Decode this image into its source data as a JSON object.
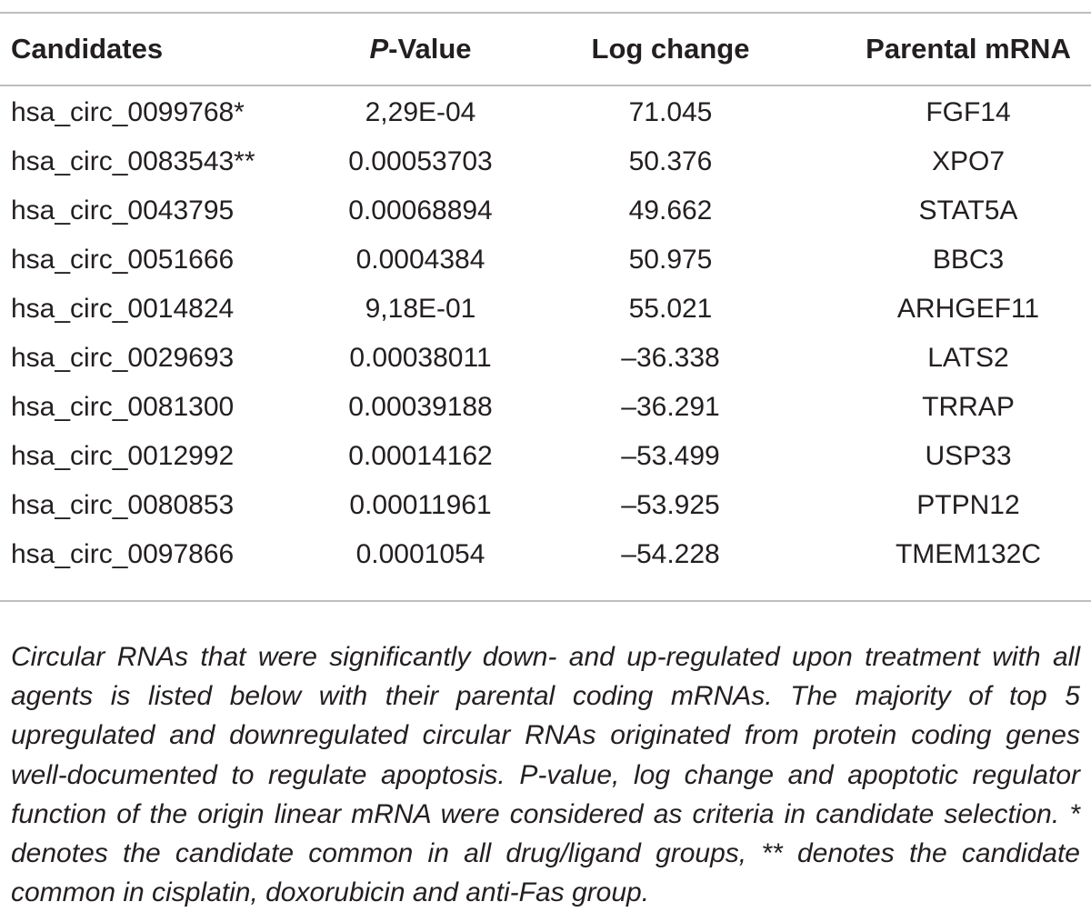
{
  "table": {
    "headers": {
      "candidates": "Candidates",
      "p_value_italic": "P",
      "p_value_rest": "-Value",
      "log_change": "Log change",
      "parental_mrna": "Parental mRNA"
    },
    "rows": [
      {
        "candidate": "hsa_circ_0099768*",
        "p_value": "2,29E-04",
        "log_change": "71.045",
        "parental": "FGF14"
      },
      {
        "candidate": "hsa_circ_0083543**",
        "p_value": "0.00053703",
        "log_change": "50.376",
        "parental": "XPO7"
      },
      {
        "candidate": "hsa_circ_0043795",
        "p_value": "0.00068894",
        "log_change": "49.662",
        "parental": "STAT5A"
      },
      {
        "candidate": "hsa_circ_0051666",
        "p_value": "0.0004384",
        "log_change": "50.975",
        "parental": "BBC3"
      },
      {
        "candidate": "hsa_circ_0014824",
        "p_value": "9,18E-01",
        "log_change": "55.021",
        "parental": "ARHGEF11"
      },
      {
        "candidate": "hsa_circ_0029693",
        "p_value": "0.00038011",
        "log_change": "–36.338",
        "parental": "LATS2"
      },
      {
        "candidate": "hsa_circ_0081300",
        "p_value": "0.00039188",
        "log_change": "–36.291",
        "parental": "TRRAP"
      },
      {
        "candidate": "hsa_circ_0012992",
        "p_value": "0.00014162",
        "log_change": "–53.499",
        "parental": "USP33"
      },
      {
        "candidate": "hsa_circ_0080853",
        "p_value": "0.00011961",
        "log_change": "–53.925",
        "parental": "PTPN12"
      },
      {
        "candidate": "hsa_circ_0097866",
        "p_value": "0.0001054",
        "log_change": "–54.228",
        "parental": "TMEM132C"
      }
    ]
  },
  "caption": "Circular RNAs that were significantly down- and up-regulated upon treatment with all agents is listed below with their parental coding mRNAs. The majority of top 5 upregulated and downregulated circular RNAs originated from protein coding genes well-documented to regulate apoptosis. P-value, log change and apoptotic regulator function of the origin linear mRNA were considered as criteria in candidate selection. * denotes the candidate common in all drug/ligand groups, ** denotes the candidate common in cisplatin, doxorubicin and anti-Fas group.",
  "colors": {
    "text": "#231f20",
    "rule": "#bcbec0",
    "background": "#ffffff"
  }
}
